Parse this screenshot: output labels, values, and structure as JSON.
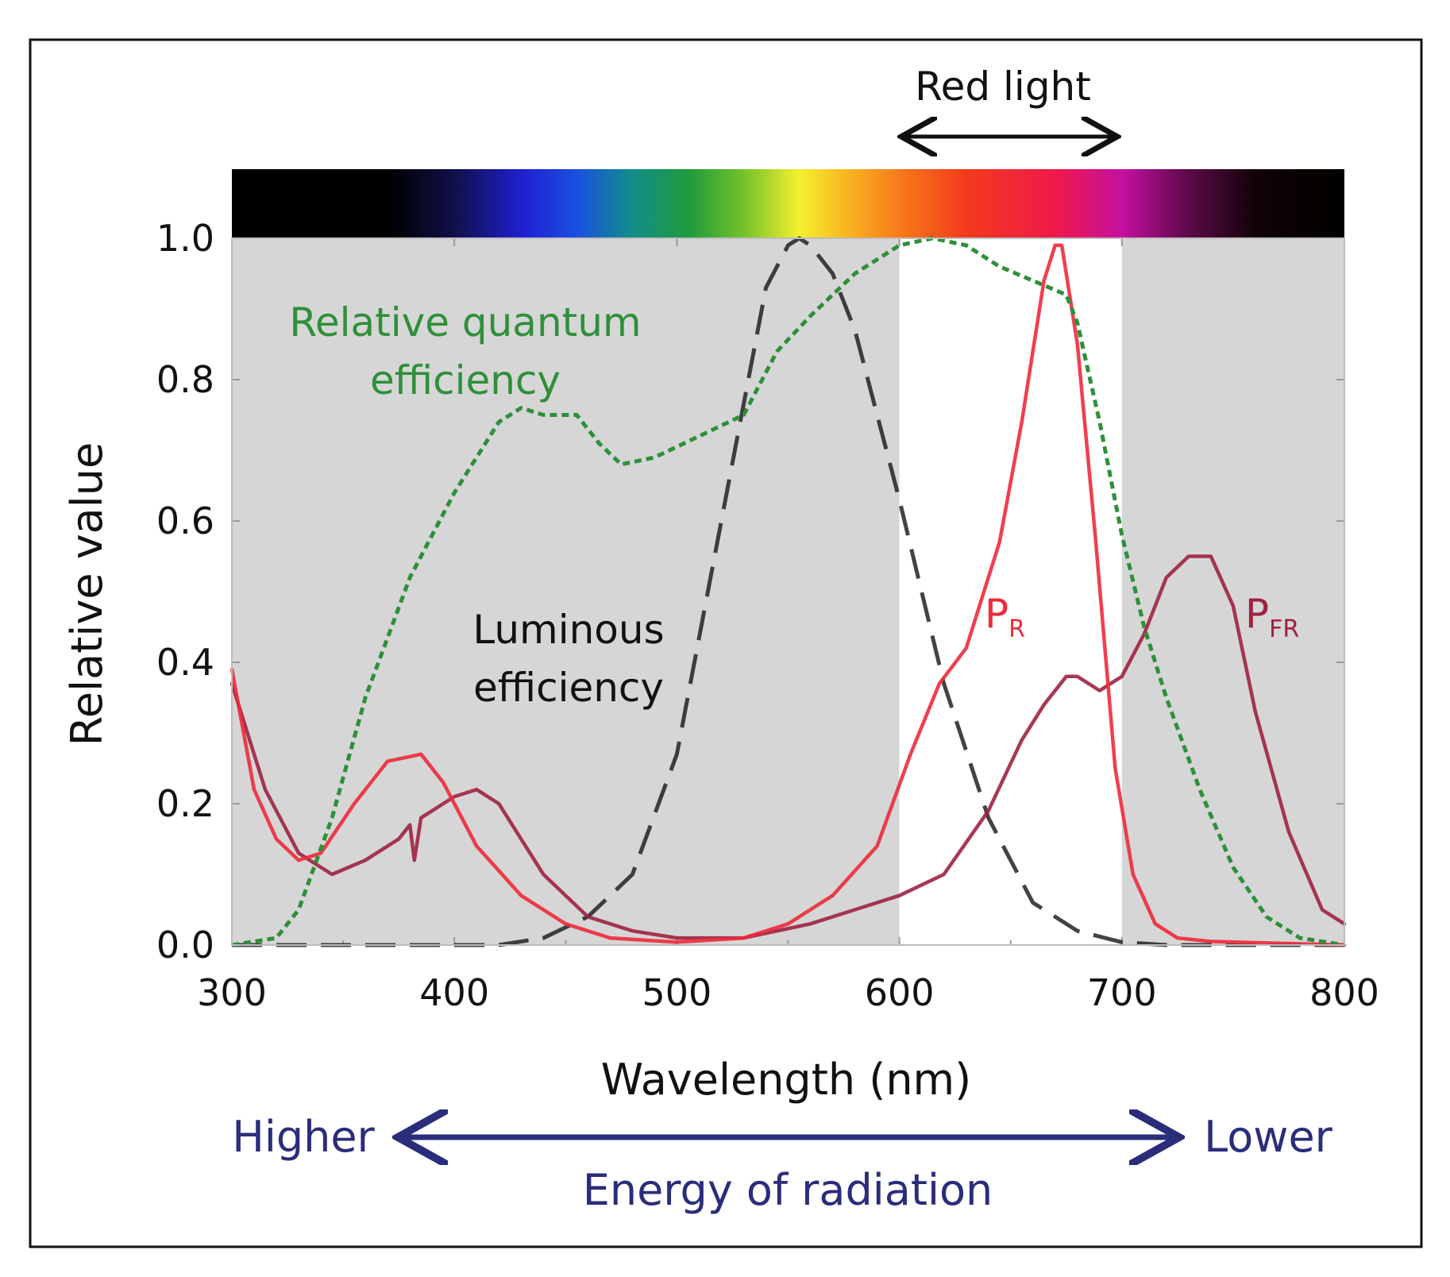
{
  "chart_data": {
    "type": "line",
    "title": "",
    "xlabel": "Wavelength (nm)",
    "ylabel": "Relative value",
    "xlim": [
      300,
      800
    ],
    "ylim": [
      0,
      1.0
    ],
    "x_ticks": [
      300,
      400,
      500,
      600,
      700,
      800
    ],
    "y_ticks": [
      0.0,
      0.2,
      0.4,
      0.6,
      0.8,
      1.0
    ],
    "x_tick_labels": [
      "300",
      "400",
      "500",
      "600",
      "700",
      "800"
    ],
    "y_tick_labels": [
      "0.0",
      "0.2",
      "0.4",
      "0.6",
      "0.8",
      "1.0"
    ],
    "red_light_band": [
      600,
      700
    ],
    "spectrum_bar": {
      "stops": [
        {
          "nm": 300,
          "color": "#000000"
        },
        {
          "nm": 370,
          "color": "#000000"
        },
        {
          "nm": 400,
          "color": "#10104a"
        },
        {
          "nm": 430,
          "color": "#1f1fd0"
        },
        {
          "nm": 455,
          "color": "#1a4fe0"
        },
        {
          "nm": 480,
          "color": "#128f8a"
        },
        {
          "nm": 505,
          "color": "#1e9a3c"
        },
        {
          "nm": 530,
          "color": "#74c22a"
        },
        {
          "nm": 555,
          "color": "#f4f030"
        },
        {
          "nm": 575,
          "color": "#f9b820"
        },
        {
          "nm": 600,
          "color": "#f77a1a"
        },
        {
          "nm": 630,
          "color": "#f23a1c"
        },
        {
          "nm": 670,
          "color": "#f0194a"
        },
        {
          "nm": 700,
          "color": "#c40fa0"
        },
        {
          "nm": 730,
          "color": "#5c0a48"
        },
        {
          "nm": 760,
          "color": "#110208"
        },
        {
          "nm": 800,
          "color": "#000000"
        }
      ]
    },
    "series": [
      {
        "name": "Relative quantum efficiency",
        "color": "#2f8f3a",
        "style": "dotted",
        "x": [
          300,
          320,
          330,
          345,
          360,
          380,
          400,
          420,
          430,
          440,
          455,
          465,
          475,
          490,
          510,
          530,
          545,
          560,
          580,
          600,
          615,
          630,
          645,
          660,
          675,
          680,
          690,
          700,
          710,
          720,
          735,
          750,
          765,
          780,
          800
        ],
        "y": [
          0.0,
          0.01,
          0.05,
          0.18,
          0.35,
          0.52,
          0.64,
          0.74,
          0.76,
          0.75,
          0.75,
          0.71,
          0.68,
          0.69,
          0.72,
          0.75,
          0.84,
          0.89,
          0.95,
          0.99,
          1.0,
          0.99,
          0.96,
          0.94,
          0.92,
          0.88,
          0.74,
          0.58,
          0.45,
          0.35,
          0.22,
          0.11,
          0.04,
          0.01,
          0.0
        ]
      },
      {
        "name": "Luminous efficiency",
        "color": "#222222",
        "style": "dashed",
        "x": [
          300,
          420,
          440,
          460,
          480,
          500,
          520,
          540,
          550,
          555,
          560,
          570,
          580,
          600,
          620,
          640,
          660,
          680,
          700,
          720,
          800
        ],
        "y": [
          0.0,
          0.0,
          0.01,
          0.04,
          0.1,
          0.27,
          0.6,
          0.93,
          0.99,
          1.0,
          0.99,
          0.95,
          0.87,
          0.63,
          0.37,
          0.18,
          0.06,
          0.02,
          0.004,
          0.0,
          0.0
        ]
      },
      {
        "name": "PR",
        "color": "#ee2a3a",
        "style": "solid",
        "x": [
          300,
          310,
          320,
          330,
          340,
          355,
          370,
          385,
          395,
          410,
          430,
          450,
          470,
          500,
          530,
          550,
          570,
          590,
          605,
          618,
          630,
          645,
          655,
          665,
          670,
          673,
          680,
          688,
          697,
          705,
          715,
          725,
          740,
          800
        ],
        "y": [
          0.39,
          0.22,
          0.15,
          0.12,
          0.13,
          0.2,
          0.26,
          0.27,
          0.23,
          0.14,
          0.07,
          0.03,
          0.01,
          0.004,
          0.01,
          0.03,
          0.07,
          0.14,
          0.27,
          0.37,
          0.42,
          0.57,
          0.74,
          0.94,
          0.99,
          0.99,
          0.85,
          0.58,
          0.25,
          0.1,
          0.03,
          0.01,
          0.005,
          0.0
        ]
      },
      {
        "name": "PFR",
        "color": "#9e2240",
        "style": "solid",
        "x": [
          300,
          315,
          330,
          345,
          360,
          375,
          380,
          382,
          385,
          400,
          410,
          420,
          440,
          460,
          480,
          500,
          530,
          560,
          580,
          600,
          620,
          640,
          655,
          665,
          675,
          680,
          690,
          700,
          710,
          720,
          730,
          740,
          750,
          760,
          775,
          790,
          800
        ],
        "y": [
          0.37,
          0.22,
          0.13,
          0.1,
          0.12,
          0.15,
          0.17,
          0.12,
          0.18,
          0.21,
          0.22,
          0.2,
          0.1,
          0.04,
          0.02,
          0.01,
          0.01,
          0.03,
          0.05,
          0.07,
          0.1,
          0.19,
          0.29,
          0.34,
          0.38,
          0.38,
          0.36,
          0.38,
          0.44,
          0.52,
          0.55,
          0.55,
          0.48,
          0.33,
          0.16,
          0.05,
          0.03
        ]
      }
    ],
    "annotations": {
      "red_light": "Red light",
      "quantum_line1": "Relative quantum",
      "quantum_line2": "efficiency",
      "luminous_line1": "Luminous",
      "luminous_line2": "efficiency",
      "pr_main": "P",
      "pr_sub": "R",
      "pfr_main": "P",
      "pfr_sub": "FR"
    },
    "energy": {
      "left": "Higher",
      "right": "Lower",
      "label": "Energy of radiation"
    }
  },
  "colors": {
    "background_band": "#d6d6d6",
    "annotation_green": "#2f8f3a",
    "annotation_black": "#111111",
    "pr_label": "#ee2a3a",
    "pfr_label": "#9e2240",
    "energy_blue": "#2a2d7a"
  }
}
